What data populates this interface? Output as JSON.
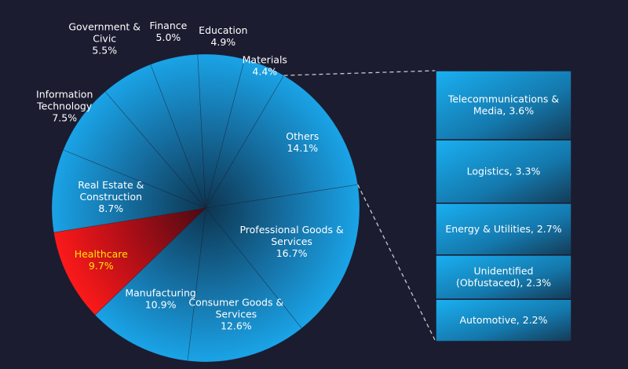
{
  "chart_data": {
    "type": "pie",
    "subtype": "pie-of-bar",
    "slices": [
      {
        "label": "Others",
        "value": 14.1,
        "pct_label": "14.1%"
      },
      {
        "label": "Professional Goods & Services",
        "value": 16.7,
        "pct_label": "16.7%"
      },
      {
        "label": "Consumer Goods & Services",
        "value": 12.6,
        "pct_label": "12.6%"
      },
      {
        "label": "Manufacturing",
        "value": 10.9,
        "pct_label": "10.9%"
      },
      {
        "label": "Healthcare",
        "value": 9.7,
        "pct_label": "9.7%",
        "highlight": true
      },
      {
        "label": "Real Estate & Construction",
        "value": 8.7,
        "pct_label": "8.7%"
      },
      {
        "label": "Information Technology",
        "value": 7.5,
        "pct_label": "7.5%"
      },
      {
        "label": "Government & Civic",
        "value": 5.5,
        "pct_label": "5.5%"
      },
      {
        "label": "Finance",
        "value": 5.0,
        "pct_label": "5.0%"
      },
      {
        "label": "Education",
        "value": 4.9,
        "pct_label": "4.9%"
      },
      {
        "label": "Materials",
        "value": 4.4,
        "pct_label": "4.4%"
      }
    ],
    "breakdown_of": "Others",
    "breakdown": [
      {
        "label": "Telecommunications & Media, 3.6%",
        "value": 3.6
      },
      {
        "label": "Logistics, 3.3%",
        "value": 3.3
      },
      {
        "label": "Energy & Utilities, 2.7%",
        "value": 2.7
      },
      {
        "label": "Unidentified (Obfustaced), 2.3%",
        "value": 2.3
      },
      {
        "label": "Automotive, 2.2%",
        "value": 2.2
      }
    ],
    "colors": {
      "background": "#1b1c30",
      "slice": "#1a9ee0",
      "slice_dark": "#0d3550",
      "highlight": "#ff1414",
      "highlight_dark": "#4a0a12",
      "label": "#ffffff",
      "highlight_label": "#ffe600",
      "connector": "#c8c8c8"
    }
  }
}
